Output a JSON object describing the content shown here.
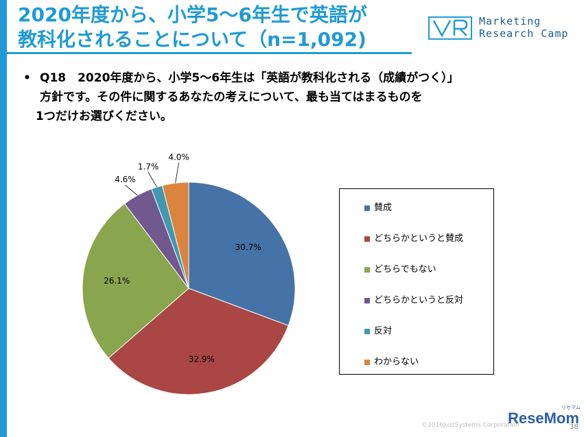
{
  "colors": {
    "accent": "#1f9ad6",
    "title_text": "#1f9ad6",
    "logo": "#1b5e8e"
  },
  "title": {
    "line1": "2020年度から、小学5～6年生で英語が",
    "line2": "教科化されることについて（n=1,092)"
  },
  "logo": {
    "line1": "Marketing",
    "line2": "Research Camp"
  },
  "question": {
    "bullet": "•",
    "line1": "Q18　2020年度から、小学5～6年生は「英語が教科化される（成績がつく）」",
    "line2": "方針です。その件に関するあなたの考えについて、最も当てはまるものを",
    "line3": "1つだけお選びください。"
  },
  "chart_data": {
    "type": "pie",
    "title": "",
    "categories": [
      "賛成",
      "どちらかというと賛成",
      "どちらでもない",
      "どちらかというと反対",
      "反対",
      "わからない"
    ],
    "values": [
      30.7,
      32.9,
      26.1,
      4.6,
      1.7,
      4.0
    ],
    "labels": [
      "30.7%",
      "32.9%",
      "26.1%",
      "4.6%",
      "1.7%",
      "4.0%"
    ],
    "colors": [
      "#4572a7",
      "#aa4643",
      "#89a54e",
      "#71588f",
      "#4198af",
      "#db843d"
    ],
    "legend_position": "right"
  },
  "footer": {
    "copyright": "©2016JustSystems Corporation",
    "page_number": "38",
    "brand": "ReseMom",
    "brand_ruby": "リセマム"
  }
}
